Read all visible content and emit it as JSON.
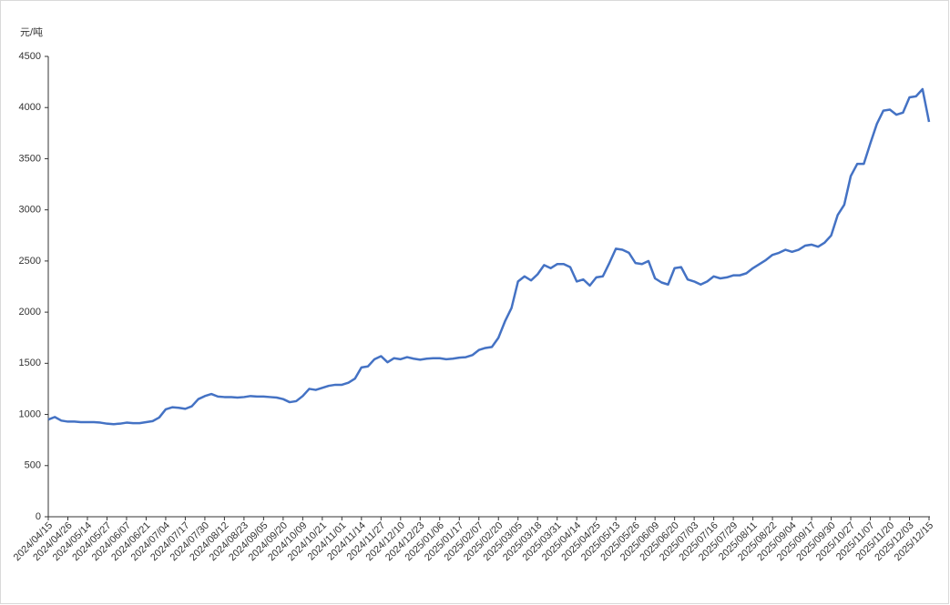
{
  "chart_data": {
    "type": "line",
    "y_label": "元/吨",
    "categories": [
      "2024/04/15",
      null,
      null,
      "2024/04/26",
      null,
      null,
      "2024/05/14",
      null,
      null,
      "2024/05/27",
      null,
      null,
      "2024/06/07",
      null,
      null,
      "2024/06/21",
      null,
      null,
      "2024/07/04",
      null,
      null,
      "2024/07/17",
      null,
      null,
      "2024/07/30",
      null,
      null,
      "2024/08/12",
      null,
      null,
      "2024/08/23",
      null,
      null,
      "2024/09/05",
      null,
      null,
      "2024/09/20",
      null,
      null,
      "2024/10/09",
      null,
      null,
      "2024/10/21",
      null,
      null,
      "2024/11/01",
      null,
      null,
      "2024/11/14",
      null,
      null,
      "2024/11/27",
      null,
      null,
      "2024/12/10",
      null,
      null,
      "2024/12/23",
      null,
      null,
      "2025/01/06",
      null,
      null,
      "2025/01/17",
      null,
      null,
      "2025/02/07",
      null,
      null,
      "2025/02/20",
      null,
      null,
      "2025/03/05",
      null,
      null,
      "2025/03/18",
      null,
      null,
      "2025/03/31",
      null,
      null,
      "2025/04/14",
      null,
      null,
      "2025/04/25",
      null,
      null,
      "2025/05/13",
      null,
      null,
      "2025/05/26",
      null,
      null,
      "2025/06/09",
      null,
      null,
      "2025/06/20",
      null,
      null,
      "2025/07/03",
      null,
      null,
      "2025/07/16",
      null,
      null,
      "2025/07/29",
      null,
      null,
      "2025/08/11",
      null,
      null,
      "2025/08/22",
      null,
      null,
      "2025/09/04",
      null,
      null,
      "2025/09/17",
      null,
      null,
      "2025/09/30",
      null,
      null,
      "2025/10/27",
      null,
      null,
      "2025/11/07",
      null,
      null,
      "2025/11/20",
      null,
      null,
      "2025/12/03",
      null,
      null,
      "2025/12/15"
    ],
    "series": [
      {
        "color": "#4472c4",
        "values": [
          950,
          975,
          940,
          930,
          930,
          925,
          925,
          925,
          920,
          910,
          905,
          910,
          920,
          915,
          915,
          925,
          935,
          970,
          1050,
          1070,
          1065,
          1055,
          1080,
          1150,
          1180,
          1200,
          1175,
          1170,
          1170,
          1165,
          1170,
          1180,
          1175,
          1175,
          1170,
          1165,
          1150,
          1120,
          1130,
          1180,
          1250,
          1240,
          1260,
          1280,
          1290,
          1290,
          1310,
          1350,
          1460,
          1470,
          1540,
          1570,
          1510,
          1550,
          1540,
          1560,
          1545,
          1535,
          1545,
          1550,
          1550,
          1540,
          1545,
          1555,
          1560,
          1580,
          1630,
          1650,
          1660,
          1750,
          1910,
          2040,
          2300,
          2350,
          2310,
          2370,
          2460,
          2430,
          2470,
          2470,
          2440,
          2300,
          2320,
          2260,
          2340,
          2350,
          2480,
          2620,
          2610,
          2580,
          2480,
          2470,
          2500,
          2330,
          2290,
          2270,
          2430,
          2440,
          2320,
          2300,
          2270,
          2300,
          2350,
          2330,
          2340,
          2360,
          2360,
          2380,
          2430,
          2470,
          2510,
          2560,
          2580,
          2610,
          2590,
          2610,
          2650,
          2660,
          2640,
          2680,
          2750,
          2950,
          3050,
          3330,
          3450,
          3450,
          3650,
          3840,
          3970,
          3980,
          3930,
          3950,
          4100,
          4110,
          4180,
          3860
        ]
      }
    ],
    "ylim": [
      0,
      4500
    ],
    "yticks": [
      0,
      500,
      1000,
      1500,
      2000,
      2500,
      3000,
      3500,
      4000,
      4500
    ],
    "grid": false
  }
}
